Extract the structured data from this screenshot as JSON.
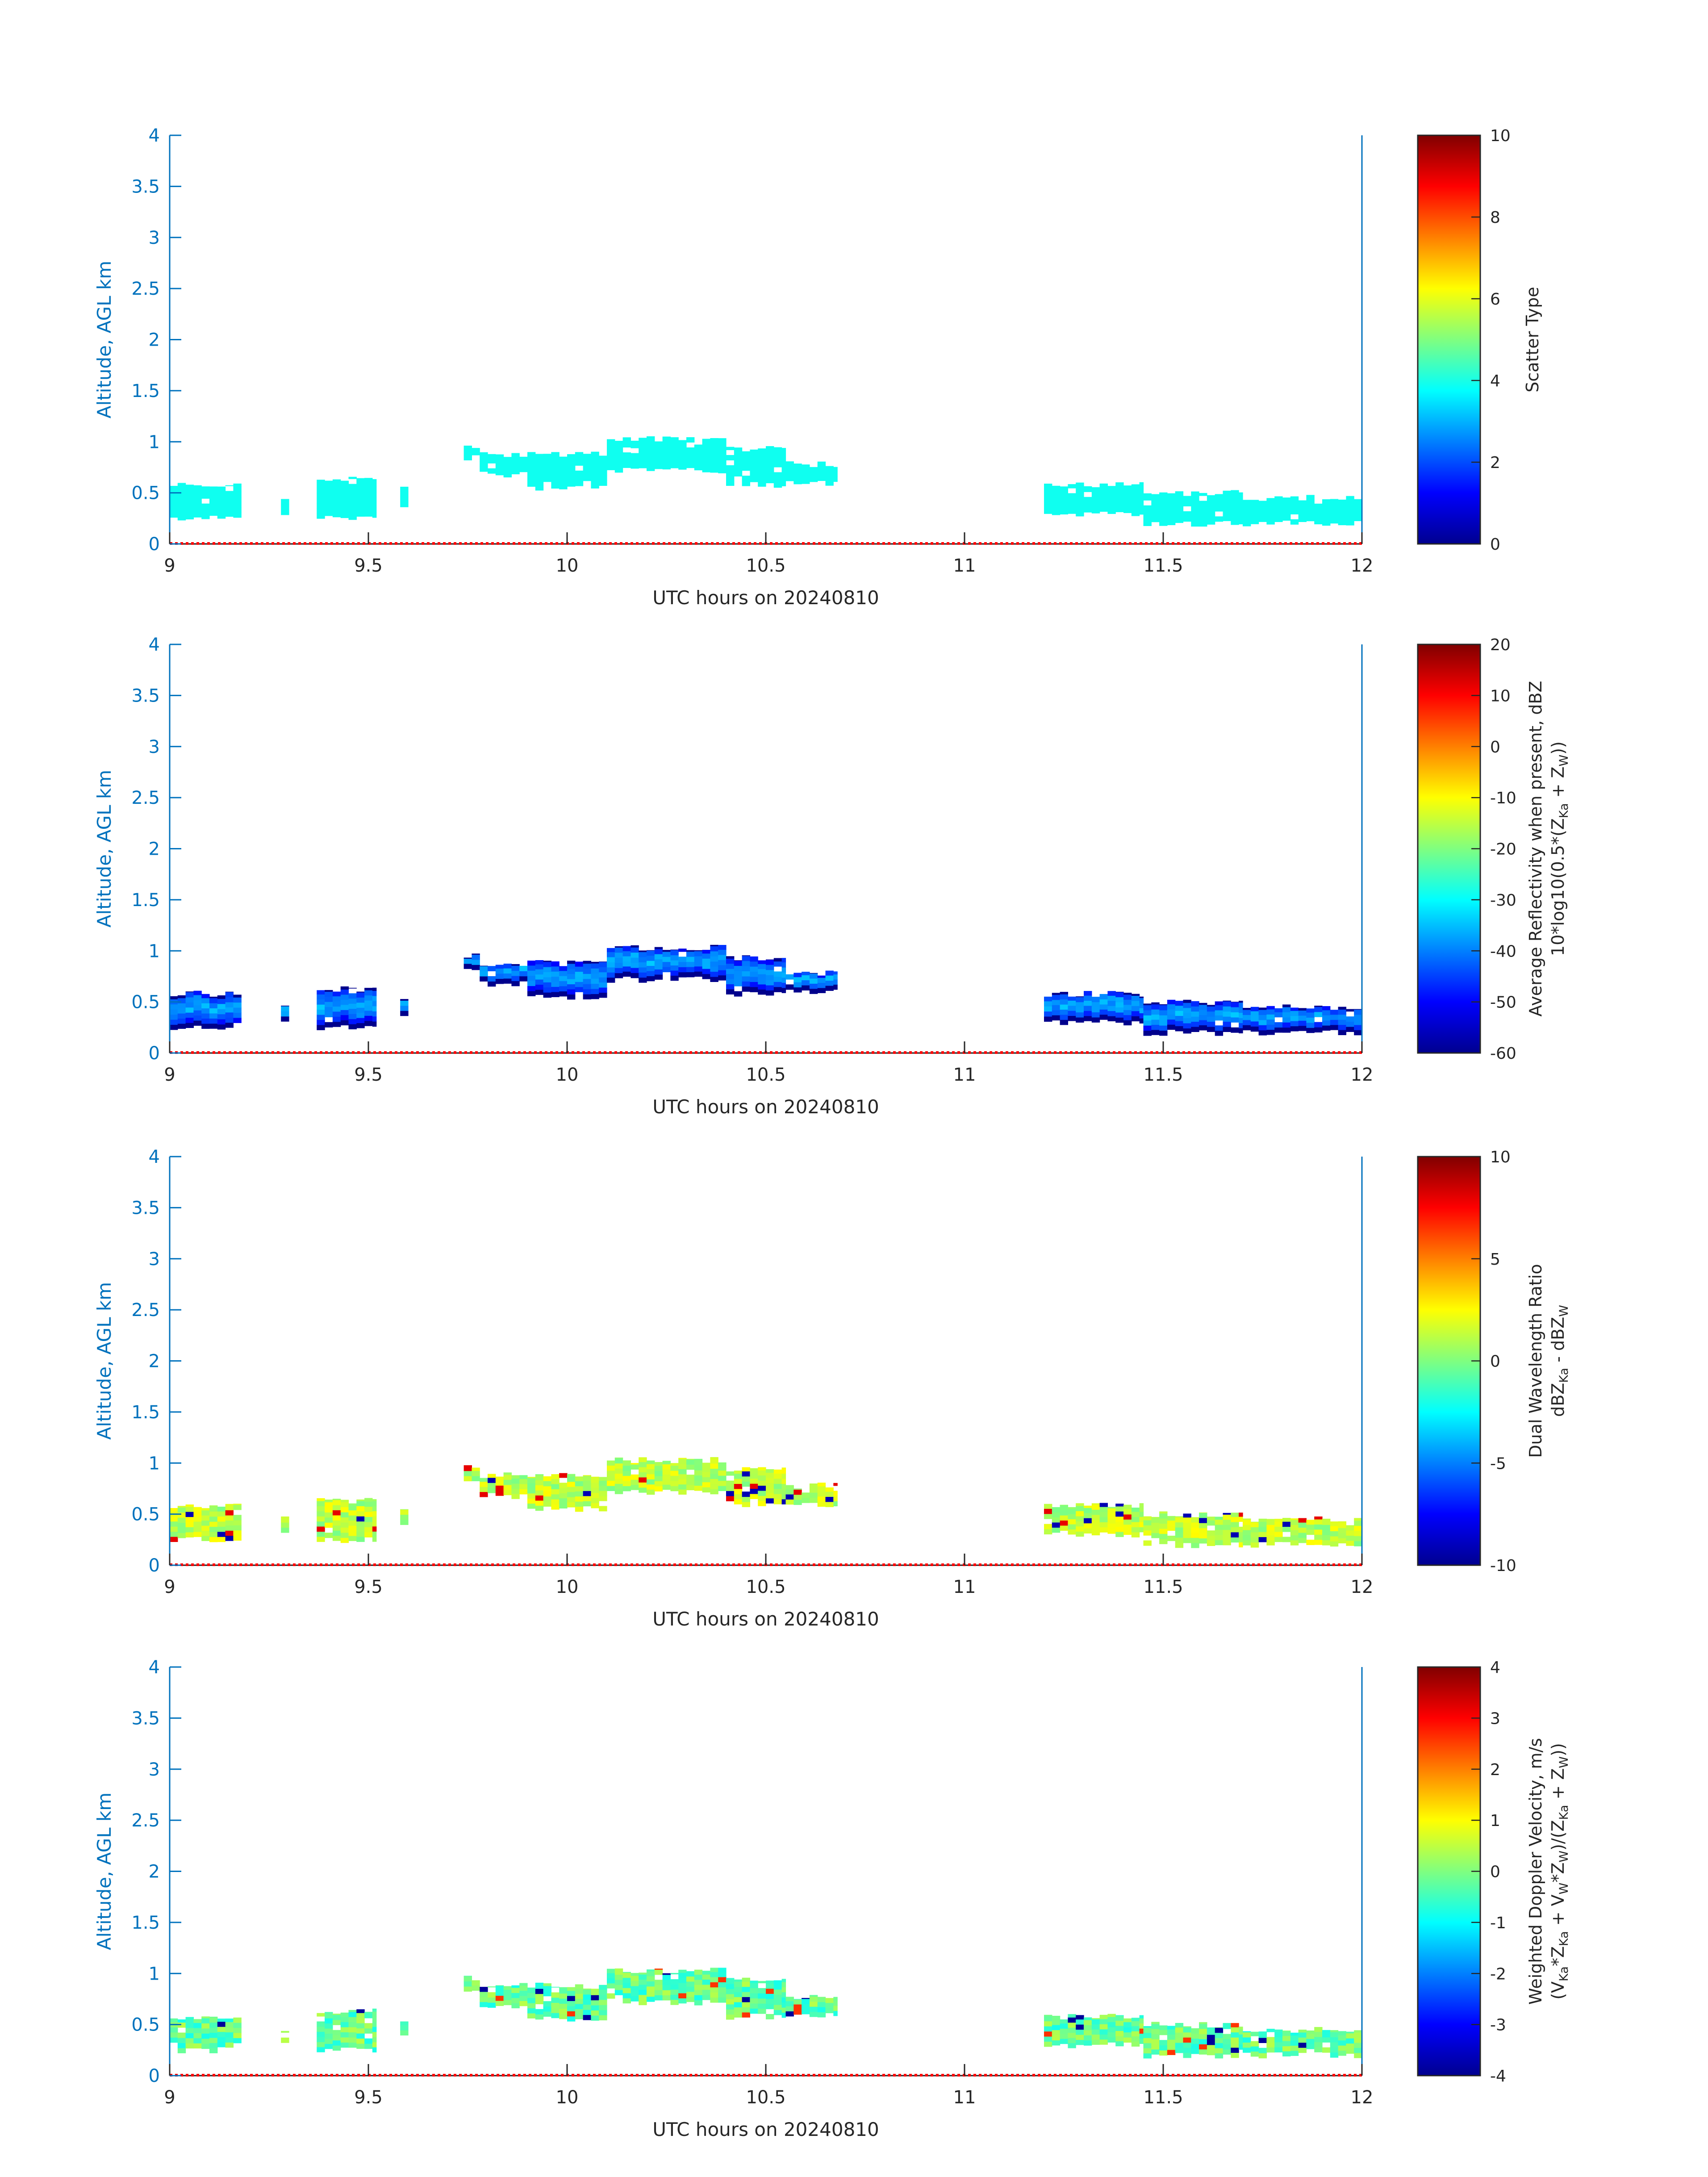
{
  "chart_data": [
    {
      "type": "heatmap",
      "xlabel": "UTC hours on 20240810",
      "ylabel": "Altitude, AGL km",
      "xlim": [
        9,
        12
      ],
      "ylim": [
        0,
        4
      ],
      "x_ticks": [
        "9",
        "9.5",
        "10",
        "10.5",
        "11",
        "11.5",
        "12"
      ],
      "y_ticks": [
        "0",
        "0.5",
        "1",
        "1.5",
        "2",
        "2.5",
        "3",
        "3.5",
        "4"
      ],
      "colorbar": {
        "label_lines": [
          "Scatter Type"
        ],
        "ticks": [
          "0",
          "2",
          "4",
          "6",
          "8",
          "10"
        ],
        "range": [
          0,
          10
        ]
      },
      "field": "scatter_type",
      "value_at_echo": 3.9
    },
    {
      "type": "heatmap",
      "xlabel": "UTC hours on 20240810",
      "ylabel": "Altitude, AGL km",
      "xlim": [
        9,
        12
      ],
      "ylim": [
        0,
        4
      ],
      "x_ticks": [
        "9",
        "9.5",
        "10",
        "10.5",
        "11",
        "11.5",
        "12"
      ],
      "y_ticks": [
        "0",
        "0.5",
        "1",
        "1.5",
        "2",
        "2.5",
        "3",
        "3.5",
        "4"
      ],
      "colorbar": {
        "label_lines": [
          "Average Reflectivity when present, dBZ",
          "10*log10(0.5*(Z",
          "Ka",
          " + Z",
          "W",
          "))"
        ],
        "ticks": [
          "-60",
          "-50",
          "-40",
          "-30",
          "-20",
          "-10",
          "0",
          "10",
          "20"
        ],
        "range": [
          -60,
          20
        ]
      },
      "field": "reflectivity",
      "value_range_observed": [
        -60,
        -35
      ]
    },
    {
      "type": "heatmap",
      "xlabel": "UTC hours on 20240810",
      "ylabel": "Altitude, AGL km",
      "xlim": [
        9,
        12
      ],
      "ylim": [
        0,
        4
      ],
      "x_ticks": [
        "9",
        "9.5",
        "10",
        "10.5",
        "11",
        "11.5",
        "12"
      ],
      "y_ticks": [
        "0",
        "0.5",
        "1",
        "1.5",
        "2",
        "2.5",
        "3",
        "3.5",
        "4"
      ],
      "colorbar": {
        "label_lines": [
          "Dual Wavelength Ratio",
          "dBZ",
          "Ka",
          " - dBZ",
          "W"
        ],
        "ticks": [
          "-10",
          "-5",
          "0",
          "5",
          "10"
        ],
        "range": [
          -10,
          10
        ]
      },
      "field": "dwr",
      "value_range_observed": [
        -5,
        8
      ]
    },
    {
      "type": "heatmap",
      "xlabel": "UTC hours on 20240810",
      "ylabel": "Altitude, AGL km",
      "xlim": [
        9,
        12
      ],
      "ylim": [
        0,
        4
      ],
      "x_ticks": [
        "9",
        "9.5",
        "10",
        "10.5",
        "11",
        "11.5",
        "12"
      ],
      "y_ticks": [
        "0",
        "0.5",
        "1",
        "1.5",
        "2",
        "2.5",
        "3",
        "3.5",
        "4"
      ],
      "colorbar": {
        "label_lines": [
          "Weighted Doppler Velocity, m/s",
          "(V",
          "Ka",
          "*Z",
          "Ka",
          " + V",
          "W",
          "*Z",
          "W",
          ")/(Z",
          "Ka",
          " + Z",
          "W",
          "))"
        ],
        "ticks": [
          "-4",
          "-3",
          "-2",
          "-1",
          "0",
          "1",
          "2",
          "3",
          "4"
        ],
        "range": [
          -4,
          4
        ]
      },
      "field": "velocity",
      "value_range_observed": [
        -4,
        3
      ]
    }
  ],
  "echo_layers": [
    {
      "t0": 9.0,
      "t1": 9.18,
      "bottom": 0.25,
      "top": 0.58
    },
    {
      "t0": 9.28,
      "t1": 9.3,
      "bottom": 0.3,
      "top": 0.45
    },
    {
      "t0": 9.37,
      "t1": 9.52,
      "bottom": 0.25,
      "top": 0.63
    },
    {
      "t0": 9.58,
      "t1": 9.6,
      "bottom": 0.38,
      "top": 0.55
    },
    {
      "t0": 9.74,
      "t1": 9.78,
      "bottom": 0.82,
      "top": 0.95
    },
    {
      "t0": 9.78,
      "t1": 9.9,
      "bottom": 0.68,
      "top": 0.88
    },
    {
      "t0": 9.9,
      "t1": 10.1,
      "bottom": 0.55,
      "top": 0.88
    },
    {
      "t0": 10.1,
      "t1": 10.4,
      "bottom": 0.72,
      "top": 1.03
    },
    {
      "t0": 10.4,
      "t1": 10.55,
      "bottom": 0.58,
      "top": 0.93
    },
    {
      "t0": 10.55,
      "t1": 10.68,
      "bottom": 0.6,
      "top": 0.78
    },
    {
      "t0": 11.2,
      "t1": 11.45,
      "bottom": 0.3,
      "top": 0.58
    },
    {
      "t0": 11.45,
      "t1": 11.7,
      "bottom": 0.2,
      "top": 0.5
    },
    {
      "t0": 11.7,
      "t1": 12.0,
      "bottom": 0.2,
      "top": 0.45
    }
  ]
}
